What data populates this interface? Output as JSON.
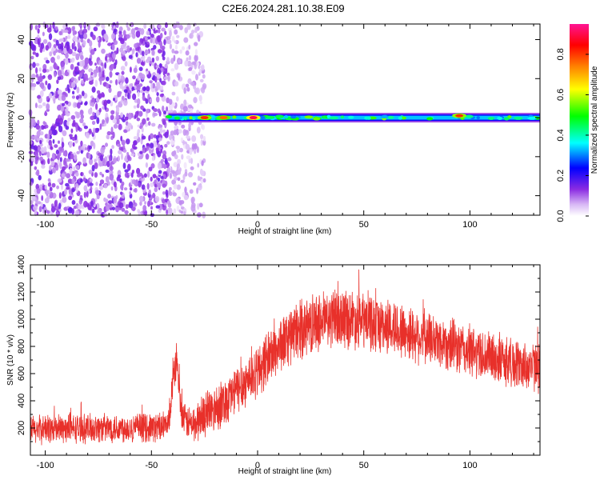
{
  "title": "C2E6.2024.281.10.38.E09",
  "colors": {
    "snr_line": "#e8302a",
    "frame": "#000000"
  },
  "chart_data": [
    {
      "type": "heatmap",
      "xlabel": "Height of straight line (km)",
      "ylabel": "Frequency (Hz)",
      "xlim": [
        -107,
        133
      ],
      "ylim": [
        -50,
        48
      ],
      "x_ticks": [
        -100,
        -50,
        0,
        50,
        100
      ],
      "y_ticks": [
        -40,
        -20,
        0,
        20,
        40
      ],
      "x_tick_labels": [
        "-100",
        "-50",
        "0",
        "50",
        "100"
      ],
      "y_tick_labels": [
        "-40",
        "-20",
        "0",
        "20",
        "40"
      ],
      "colorbar": {
        "label": "Normalized spectral amplitude",
        "range": [
          0,
          0.95
        ],
        "ticks": [
          0.0,
          0.2,
          0.4,
          0.6,
          0.8
        ],
        "tick_labels": [
          "0.0",
          "0.2",
          "0.4",
          "0.6",
          "0.8"
        ],
        "colormap": [
          "#ffffff",
          "#8a2be2",
          "#0000ff",
          "#00ffff",
          "#00ff00",
          "#ffff00",
          "#ff8000",
          "#ff0000",
          "#ff1493"
        ]
      },
      "features": [
        {
          "region": "noise",
          "x_range": [
            -107,
            -42
          ],
          "freq_range": [
            -50,
            48
          ],
          "amplitude": 0.1
        },
        {
          "region": "sparse noise",
          "x_range": [
            -42,
            -25
          ],
          "freq_range": [
            -50,
            48
          ],
          "amplitude": 0.05
        },
        {
          "region": "signal line",
          "x_range": [
            -42,
            133
          ],
          "frequency": 0,
          "amplitude": 0.35
        },
        {
          "region": "strong spot",
          "x": -25,
          "frequency": 0,
          "amplitude": 0.85
        },
        {
          "region": "strong spot",
          "x": -16,
          "frequency": 0,
          "amplitude": 0.8
        },
        {
          "region": "strong spot",
          "x": -2,
          "frequency": 0,
          "amplitude": 0.95
        },
        {
          "region": "strong spot",
          "x": 95,
          "frequency": 1,
          "amplitude": 0.85
        }
      ]
    },
    {
      "type": "line",
      "xlabel": "Height of straight line (km)",
      "ylabel": "SNR (10 * v/v)",
      "xlim": [
        -107,
        133
      ],
      "ylim": [
        0,
        1400
      ],
      "x_ticks": [
        -100,
        -50,
        0,
        50,
        100
      ],
      "y_ticks": [
        200,
        400,
        600,
        800,
        1000,
        1200,
        1400
      ],
      "x_tick_labels": [
        "-100",
        "-50",
        "0",
        "50",
        "100"
      ],
      "y_tick_labels": [
        "200",
        "400",
        "600",
        "800",
        "1000",
        "1200",
        "1400"
      ],
      "series": [
        {
          "x": [
            -107,
            -90,
            -70,
            -50,
            -42,
            -40,
            -38,
            -36,
            -34,
            -30,
            -25,
            -20,
            -15,
            -10,
            -5,
            0,
            5,
            10,
            15,
            20,
            25,
            30,
            35,
            40,
            45,
            50,
            55,
            60,
            65,
            70,
            75,
            80,
            85,
            90,
            95,
            100,
            105,
            110,
            115,
            120,
            125,
            130,
            133
          ],
          "y": [
            190,
            195,
            200,
            205,
            210,
            520,
            720,
            300,
            250,
            220,
            300,
            350,
            400,
            480,
            550,
            620,
            720,
            800,
            870,
            920,
            960,
            985,
            1000,
            1010,
            1000,
            985,
            970,
            950,
            930,
            900,
            880,
            860,
            840,
            820,
            780,
            760,
            740,
            720,
            700,
            680,
            660,
            650,
            640
          ],
          "band": [
            120,
            120,
            120,
            120,
            120,
            150,
            140,
            150,
            130,
            160,
            180,
            200,
            200,
            200,
            210,
            220,
            230,
            230,
            240,
            240,
            240,
            240,
            240,
            250,
            240,
            240,
            240,
            230,
            230,
            230,
            230,
            220,
            220,
            220,
            220,
            220,
            210,
            210,
            210,
            210,
            200,
            200,
            200
          ]
        }
      ]
    }
  ]
}
